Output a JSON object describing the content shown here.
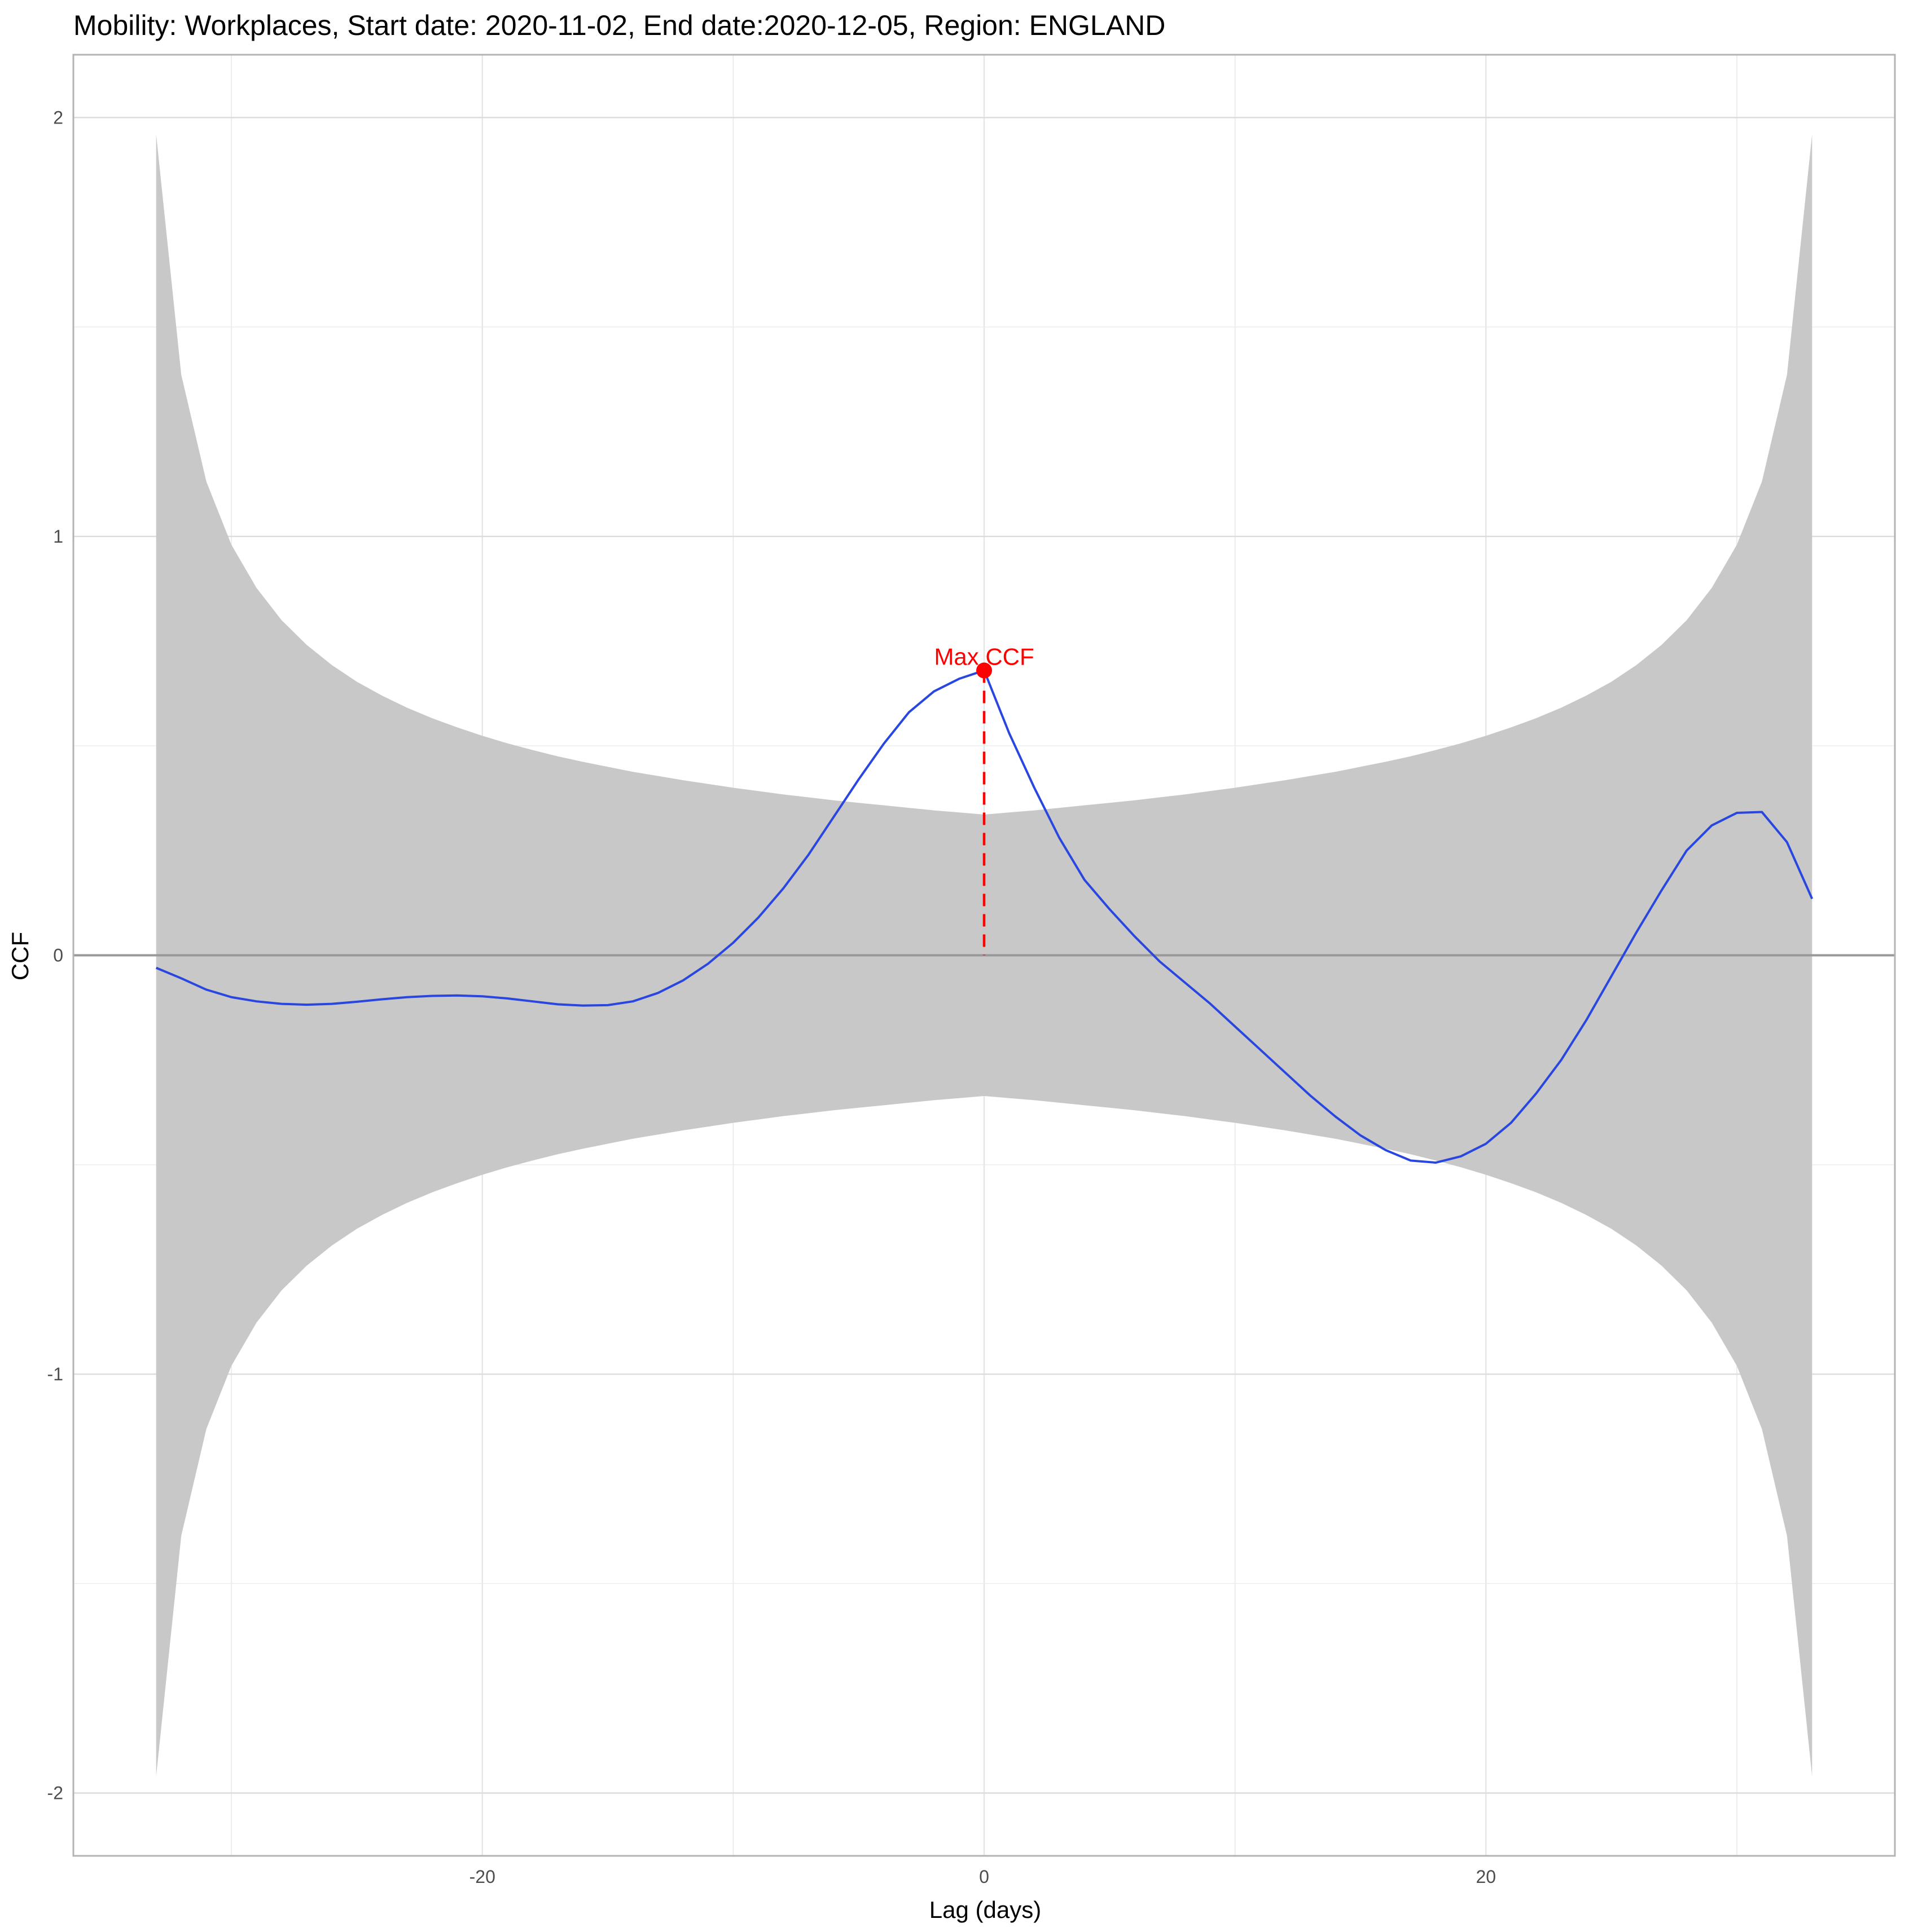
{
  "chart_data": {
    "type": "line",
    "title": "Mobility: Workplaces, Start date: 2020-11-02, End date:2020-12-05, Region: ENGLAND",
    "xlabel": "Lag (days)",
    "ylabel": "CCF",
    "xlim": [
      -36.3,
      36.3
    ],
    "ylim": [
      -2.15,
      2.15
    ],
    "x_ticks": [
      -20,
      0,
      20
    ],
    "x_tick_labels": [
      "-20",
      "0",
      "20"
    ],
    "y_ticks": [
      -2,
      -1,
      0,
      1,
      2
    ],
    "y_tick_labels": [
      "-2",
      "-1",
      "0",
      "1",
      "2"
    ],
    "grid": true,
    "legend": "none",
    "series": [
      {
        "color": "#2946e0",
        "x": [
          -33,
          -32,
          -31,
          -30,
          -29,
          -28,
          -27,
          -26,
          -25,
          -24,
          -23,
          -22,
          -21,
          -20,
          -19,
          -18,
          -17,
          -16,
          -15,
          -14,
          -13,
          -12,
          -11,
          -10,
          -9,
          -8,
          -7,
          -6,
          -5,
          -4,
          -3,
          -2,
          -1,
          0,
          1,
          2,
          3,
          4,
          5,
          6,
          7,
          8,
          9,
          10,
          11,
          12,
          13,
          14,
          15,
          16,
          17,
          18,
          19,
          20,
          21,
          22,
          23,
          24,
          25,
          26,
          27,
          28,
          29,
          30,
          31,
          32,
          33
        ],
        "values": [
          -0.03,
          -0.055,
          -0.082,
          -0.1,
          -0.11,
          -0.116,
          -0.118,
          -0.116,
          -0.111,
          -0.105,
          -0.1,
          -0.097,
          -0.096,
          -0.098,
          -0.103,
          -0.11,
          -0.117,
          -0.12,
          -0.119,
          -0.11,
          -0.09,
          -0.06,
          -0.02,
          0.03,
          0.09,
          0.16,
          0.24,
          0.33,
          0.42,
          0.505,
          0.58,
          0.63,
          0.66,
          0.68,
          0.53,
          0.4,
          0.28,
          0.18,
          0.11,
          0.045,
          -0.015,
          -0.065,
          -0.115,
          -0.17,
          -0.225,
          -0.28,
          -0.335,
          -0.385,
          -0.43,
          -0.465,
          -0.49,
          -0.495,
          -0.48,
          -0.45,
          -0.4,
          -0.33,
          -0.25,
          -0.155,
          -0.05,
          0.055,
          0.155,
          0.25,
          0.31,
          0.34,
          0.342,
          0.27,
          0.135
        ]
      }
    ],
    "confidence_band": {
      "color": "#c8c8c8",
      "x": [
        -33,
        -32,
        -31,
        -30,
        -29,
        -28,
        -27,
        -26,
        -25,
        -24,
        -23,
        -22,
        -21,
        -20,
        -19,
        -18,
        -17,
        -16,
        -15,
        -14,
        -13,
        -12,
        -11,
        -10,
        -9,
        -8,
        -7,
        -6,
        -5,
        -4,
        -3,
        -2,
        -1,
        0,
        1,
        2,
        3,
        4,
        5,
        6,
        7,
        8,
        9,
        10,
        11,
        12,
        13,
        14,
        15,
        16,
        17,
        18,
        19,
        20,
        21,
        22,
        23,
        24,
        25,
        26,
        27,
        28,
        29,
        30,
        31,
        32,
        33
      ],
      "upper": [
        1.96,
        1.386,
        1.131,
        0.98,
        0.877,
        0.8,
        0.741,
        0.693,
        0.653,
        0.62,
        0.591,
        0.566,
        0.544,
        0.524,
        0.506,
        0.49,
        0.475,
        0.462,
        0.45,
        0.438,
        0.428,
        0.418,
        0.409,
        0.4,
        0.392,
        0.384,
        0.377,
        0.37,
        0.364,
        0.358,
        0.352,
        0.346,
        0.341,
        0.336,
        0.341,
        0.346,
        0.352,
        0.358,
        0.364,
        0.37,
        0.377,
        0.384,
        0.392,
        0.4,
        0.409,
        0.418,
        0.428,
        0.438,
        0.45,
        0.462,
        0.475,
        0.49,
        0.506,
        0.524,
        0.544,
        0.566,
        0.591,
        0.62,
        0.653,
        0.693,
        0.741,
        0.8,
        0.877,
        0.98,
        1.131,
        1.386,
        1.96
      ],
      "lower": [
        -1.96,
        -1.386,
        -1.131,
        -0.98,
        -0.877,
        -0.8,
        -0.741,
        -0.693,
        -0.653,
        -0.62,
        -0.591,
        -0.566,
        -0.544,
        -0.524,
        -0.506,
        -0.49,
        -0.475,
        -0.462,
        -0.45,
        -0.438,
        -0.428,
        -0.418,
        -0.409,
        -0.4,
        -0.392,
        -0.384,
        -0.377,
        -0.37,
        -0.364,
        -0.358,
        -0.352,
        -0.346,
        -0.341,
        -0.336,
        -0.341,
        -0.346,
        -0.352,
        -0.358,
        -0.364,
        -0.37,
        -0.377,
        -0.384,
        -0.392,
        -0.4,
        -0.409,
        -0.418,
        -0.428,
        -0.438,
        -0.45,
        -0.462,
        -0.475,
        -0.49,
        -0.506,
        -0.524,
        -0.544,
        -0.566,
        -0.591,
        -0.62,
        -0.653,
        -0.693,
        -0.741,
        -0.8,
        -0.877,
        -0.98,
        -1.131,
        -1.386,
        -1.96
      ]
    },
    "reference_line": {
      "y": 0,
      "color": "#999999"
    },
    "max_point": {
      "x": 0,
      "y": 0.68,
      "label": "Max CCF",
      "color": "#ff0000"
    }
  }
}
